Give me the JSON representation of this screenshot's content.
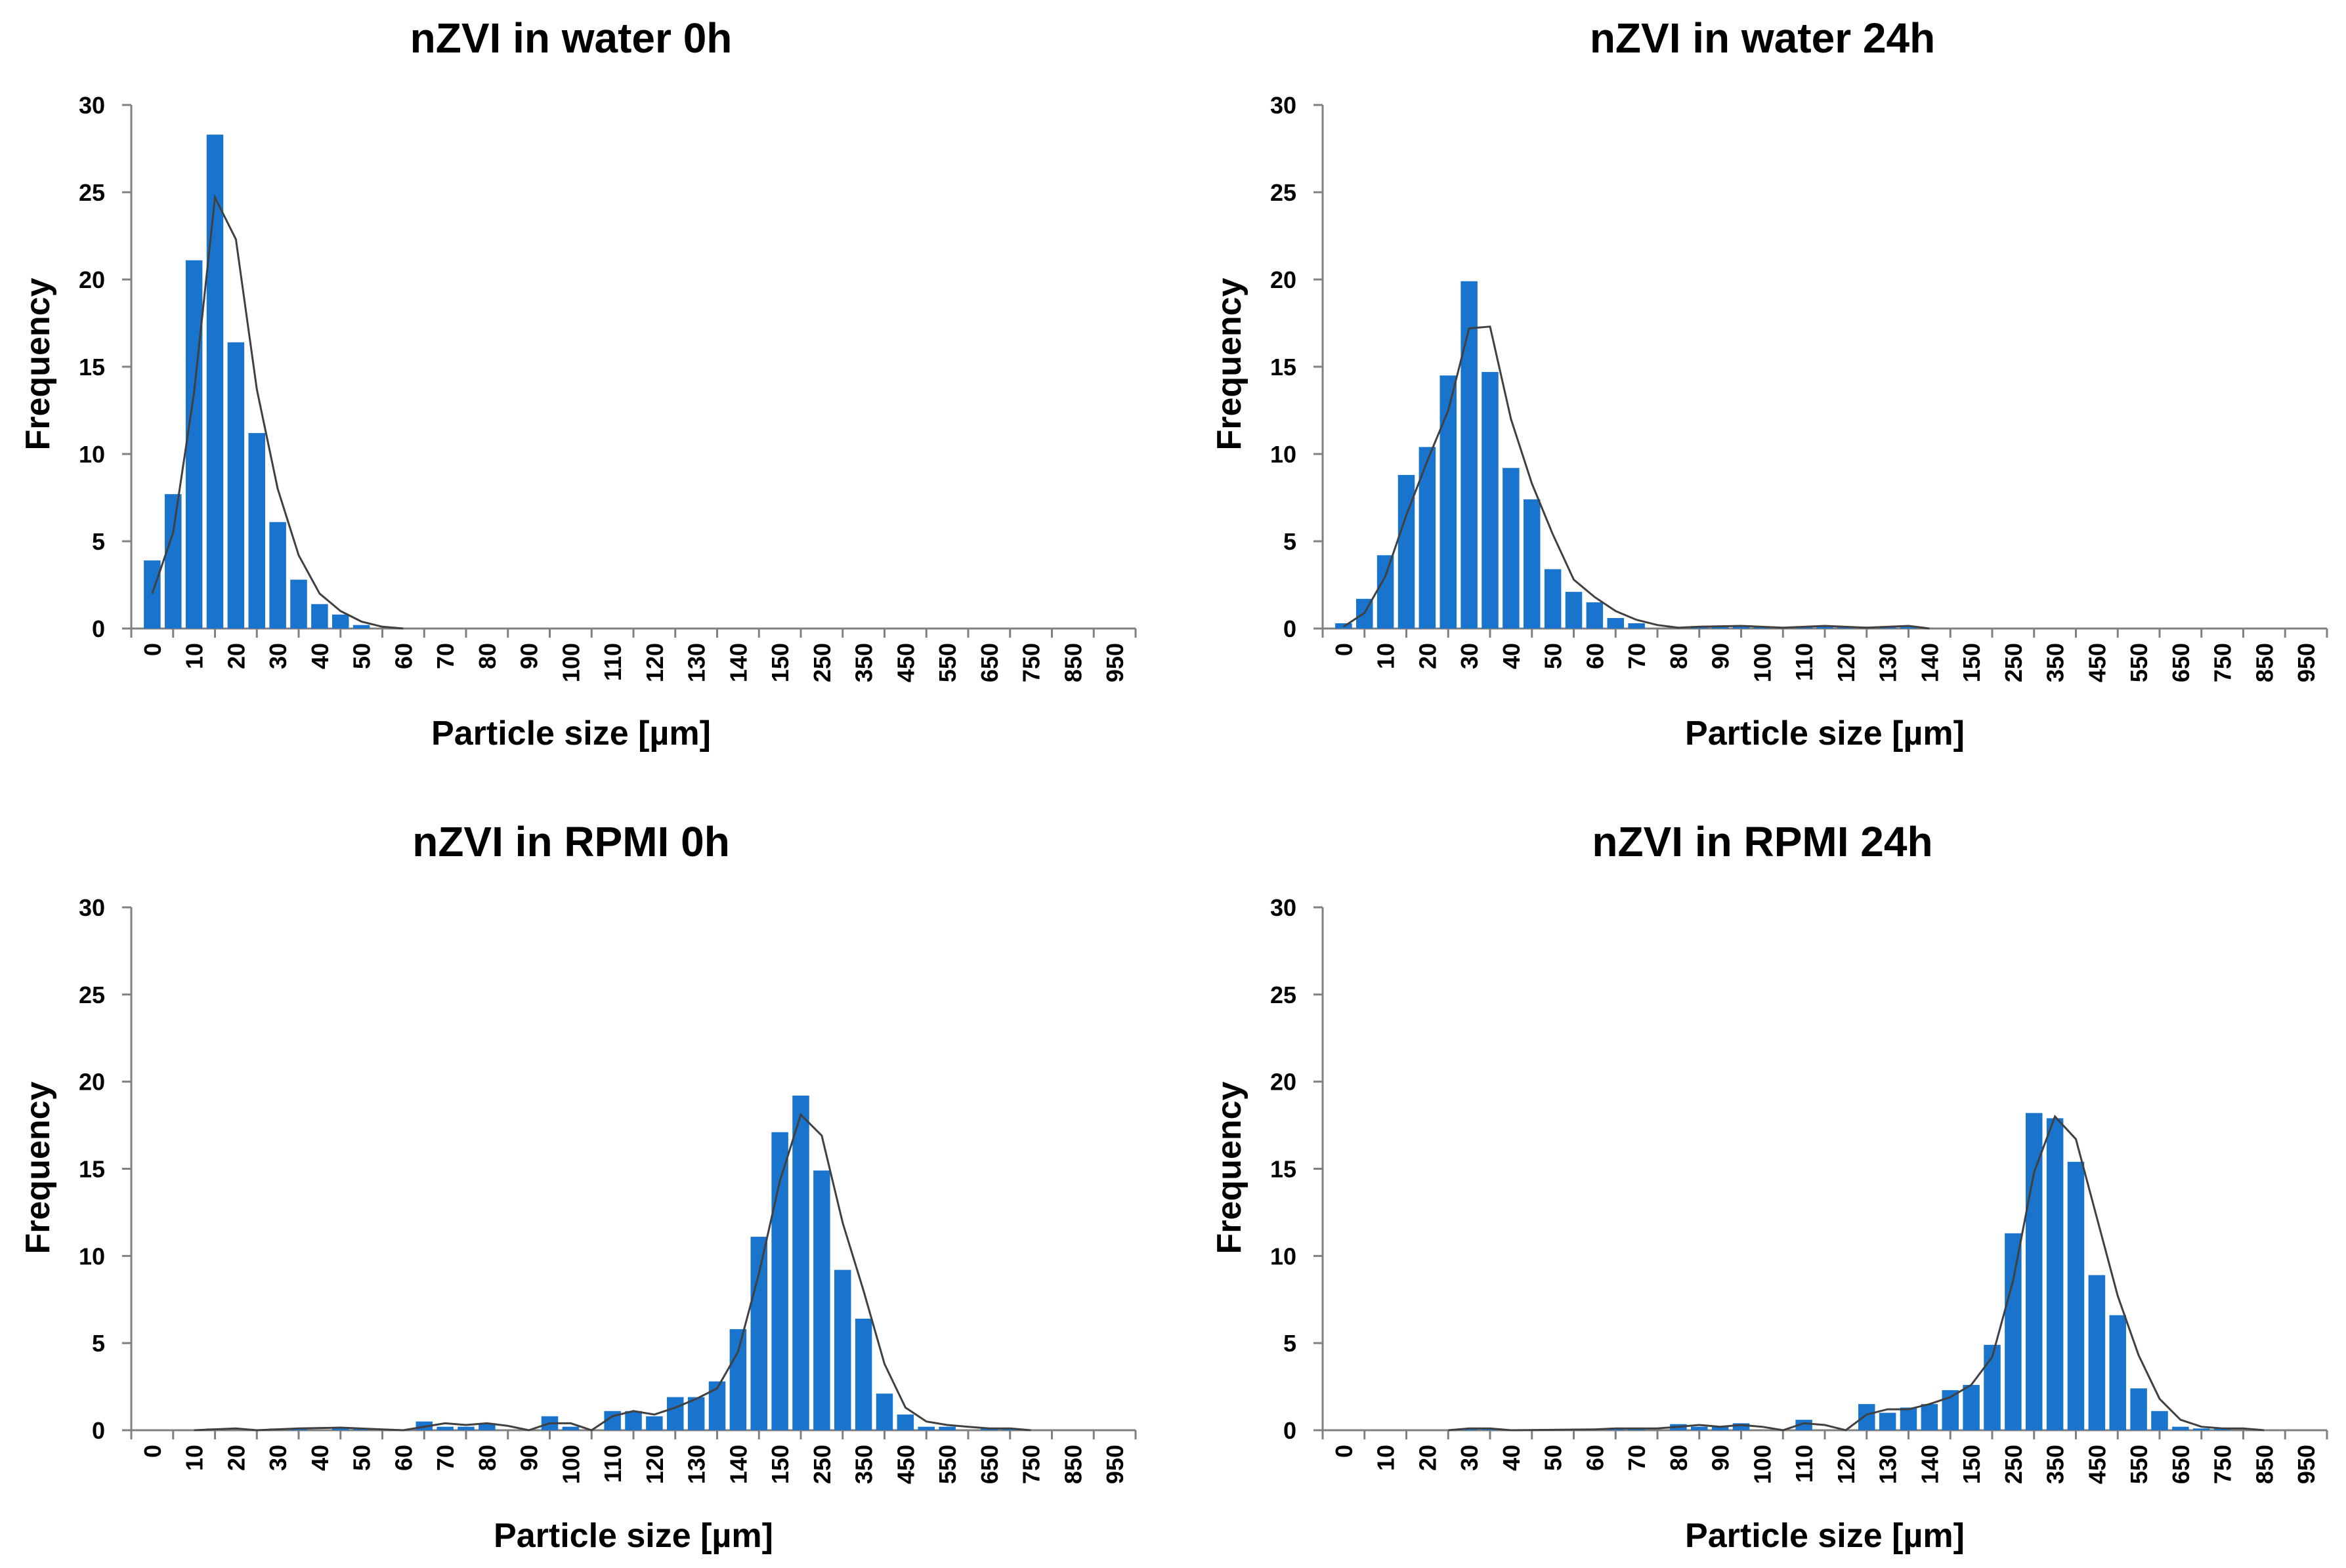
{
  "colors": {
    "bar": "#1874CD",
    "fit_line": "#404040",
    "axis": "#808080"
  },
  "chart_data": [
    {
      "type": "bar",
      "title": "nZVI in water 0h",
      "xlabel": "Particle size [µm]",
      "ylabel": "Frequency",
      "ylim": [
        0,
        30
      ],
      "yticks": [
        "0",
        "5",
        "10",
        "15",
        "20",
        "25",
        "30"
      ],
      "categories": [
        "0",
        "10",
        "20",
        "30",
        "40",
        "50",
        "60",
        "70",
        "80",
        "90",
        "100",
        "110",
        "120",
        "130",
        "140",
        "150",
        "250",
        "350",
        "450",
        "550",
        "650",
        "750",
        "850",
        "950"
      ],
      "bars": [
        {
          "x": 0.5,
          "value": 3.9
        },
        {
          "x": 1.0,
          "value": 7.7
        },
        {
          "x": 1.5,
          "value": 21.1
        },
        {
          "x": 2.0,
          "value": 28.3
        },
        {
          "x": 2.5,
          "value": 16.4
        },
        {
          "x": 3.0,
          "value": 11.2
        },
        {
          "x": 3.5,
          "value": 6.1
        },
        {
          "x": 4.0,
          "value": 2.8
        },
        {
          "x": 4.5,
          "value": 1.4
        },
        {
          "x": 5.0,
          "value": 0.8
        },
        {
          "x": 5.5,
          "value": 0.2
        }
      ],
      "fit": [
        [
          0.5,
          2.0
        ],
        [
          1.0,
          5.5
        ],
        [
          1.5,
          13.5
        ],
        [
          2.0,
          24.7
        ],
        [
          2.5,
          22.3
        ],
        [
          3.0,
          13.7
        ],
        [
          3.5,
          8.0
        ],
        [
          4.0,
          4.2
        ],
        [
          4.5,
          2.0
        ],
        [
          5.0,
          1.0
        ],
        [
          5.5,
          0.4
        ],
        [
          6.0,
          0.1
        ],
        [
          6.5,
          0.0
        ]
      ]
    },
    {
      "type": "bar",
      "title": "nZVI in water 24h",
      "xlabel": "Particle size [µm]",
      "ylabel": "Frequency",
      "ylim": [
        0,
        30
      ],
      "yticks": [
        "0",
        "5",
        "10",
        "15",
        "20",
        "25",
        "30"
      ],
      "categories": [
        "0",
        "10",
        "20",
        "30",
        "40",
        "50",
        "60",
        "70",
        "80",
        "90",
        "100",
        "110",
        "120",
        "130",
        "140",
        "150",
        "250",
        "350",
        "450",
        "550",
        "650",
        "750",
        "850",
        "950"
      ],
      "bars": [
        {
          "x": 0.5,
          "value": 0.3
        },
        {
          "x": 1.0,
          "value": 1.7
        },
        {
          "x": 1.5,
          "value": 4.2
        },
        {
          "x": 2.0,
          "value": 8.8
        },
        {
          "x": 2.5,
          "value": 10.4
        },
        {
          "x": 3.0,
          "value": 14.5
        },
        {
          "x": 3.5,
          "value": 19.9
        },
        {
          "x": 4.0,
          "value": 14.7
        },
        {
          "x": 4.5,
          "value": 9.2
        },
        {
          "x": 5.0,
          "value": 7.4
        },
        {
          "x": 5.5,
          "value": 3.4
        },
        {
          "x": 6.0,
          "value": 2.1
        },
        {
          "x": 6.5,
          "value": 1.5
        },
        {
          "x": 7.0,
          "value": 0.6
        },
        {
          "x": 7.5,
          "value": 0.3
        },
        {
          "x": 9.0,
          "value": 0.1
        },
        {
          "x": 9.5,
          "value": 0.15
        },
        {
          "x": 10.0,
          "value": 0.15
        },
        {
          "x": 10.5,
          "value": 0.1
        },
        {
          "x": 11.5,
          "value": 0.1
        },
        {
          "x": 12.0,
          "value": 0.15
        },
        {
          "x": 12.5,
          "value": 0.1
        },
        {
          "x": 13.0,
          "value": 0.1
        },
        {
          "x": 13.5,
          "value": 0.1
        },
        {
          "x": 14.0,
          "value": 0.15
        }
      ],
      "fit": [
        [
          0.5,
          0.1
        ],
        [
          1.0,
          0.9
        ],
        [
          1.5,
          3.0
        ],
        [
          2.0,
          6.5
        ],
        [
          2.5,
          9.6
        ],
        [
          3.0,
          12.5
        ],
        [
          3.5,
          17.2
        ],
        [
          4.0,
          17.3
        ],
        [
          4.5,
          12.0
        ],
        [
          5.0,
          8.3
        ],
        [
          5.5,
          5.4
        ],
        [
          6.0,
          2.8
        ],
        [
          6.5,
          1.8
        ],
        [
          7.0,
          1.0
        ],
        [
          7.5,
          0.5
        ],
        [
          8.0,
          0.2
        ],
        [
          8.5,
          0.05
        ],
        [
          9.0,
          0.1
        ],
        [
          10.0,
          0.15
        ],
        [
          11.0,
          0.05
        ],
        [
          12.0,
          0.15
        ],
        [
          13.0,
          0.05
        ],
        [
          14.0,
          0.15
        ],
        [
          14.5,
          0.0
        ]
      ]
    },
    {
      "type": "bar",
      "title": "nZVI in RPMI 0h",
      "xlabel": "Particle size [µm]",
      "ylabel": "Frequency",
      "ylim": [
        0,
        30
      ],
      "yticks": [
        "0",
        "5",
        "10",
        "15",
        "20",
        "25",
        "30"
      ],
      "categories": [
        "0",
        "10",
        "20",
        "30",
        "40",
        "50",
        "60",
        "70",
        "80",
        "90",
        "100",
        "110",
        "120",
        "130",
        "140",
        "150",
        "250",
        "350",
        "450",
        "550",
        "650",
        "750",
        "850",
        "950"
      ],
      "bars": [
        {
          "x": 2.0,
          "value": 0.1
        },
        {
          "x": 3.5,
          "value": 0.1
        },
        {
          "x": 4.0,
          "value": 0.1
        },
        {
          "x": 5.0,
          "value": 0.15
        },
        {
          "x": 5.5,
          "value": 0.1
        },
        {
          "x": 7.0,
          "value": 0.5
        },
        {
          "x": 7.5,
          "value": 0.2
        },
        {
          "x": 8.0,
          "value": 0.2
        },
        {
          "x": 8.5,
          "value": 0.4
        },
        {
          "x": 10.0,
          "value": 0.8
        },
        {
          "x": 10.5,
          "value": 0.2
        },
        {
          "x": 11.5,
          "value": 1.1
        },
        {
          "x": 12.0,
          "value": 1.1
        },
        {
          "x": 12.5,
          "value": 0.8
        },
        {
          "x": 13.0,
          "value": 1.9
        },
        {
          "x": 13.5,
          "value": 1.9
        },
        {
          "x": 14.0,
          "value": 2.8
        },
        {
          "x": 14.5,
          "value": 5.8
        },
        {
          "x": 15.0,
          "value": 11.1
        },
        {
          "x": 15.5,
          "value": 17.1
        },
        {
          "x": 16.0,
          "value": 19.2
        },
        {
          "x": 16.5,
          "value": 14.9
        },
        {
          "x": 17.0,
          "value": 9.2
        },
        {
          "x": 17.5,
          "value": 6.4
        },
        {
          "x": 18.0,
          "value": 2.1
        },
        {
          "x": 18.5,
          "value": 0.9
        },
        {
          "x": 19.0,
          "value": 0.2
        },
        {
          "x": 19.5,
          "value": 0.2
        },
        {
          "x": 20.5,
          "value": 0.1
        },
        {
          "x": 21.0,
          "value": 0.1
        }
      ],
      "fit": [
        [
          1.5,
          0.0
        ],
        [
          2.5,
          0.1
        ],
        [
          3.0,
          0.0
        ],
        [
          4.0,
          0.1
        ],
        [
          5.0,
          0.15
        ],
        [
          6.0,
          0.05
        ],
        [
          6.5,
          0.0
        ],
        [
          7.5,
          0.4
        ],
        [
          8.0,
          0.3
        ],
        [
          8.5,
          0.4
        ],
        [
          9.0,
          0.25
        ],
        [
          9.5,
          0.0
        ],
        [
          10.0,
          0.4
        ],
        [
          10.5,
          0.4
        ],
        [
          11.0,
          0.0
        ],
        [
          11.5,
          0.8
        ],
        [
          12.0,
          1.1
        ],
        [
          12.5,
          0.9
        ],
        [
          13.0,
          1.3
        ],
        [
          13.5,
          1.8
        ],
        [
          14.0,
          2.4
        ],
        [
          14.5,
          4.5
        ],
        [
          15.0,
          9.0
        ],
        [
          15.5,
          14.3
        ],
        [
          16.0,
          18.1
        ],
        [
          16.5,
          16.9
        ],
        [
          17.0,
          11.9
        ],
        [
          17.5,
          8.0
        ],
        [
          18.0,
          3.8
        ],
        [
          18.5,
          1.3
        ],
        [
          19.0,
          0.5
        ],
        [
          19.5,
          0.3
        ],
        [
          20.0,
          0.2
        ],
        [
          20.5,
          0.1
        ],
        [
          21.0,
          0.1
        ],
        [
          21.5,
          0.0
        ]
      ]
    },
    {
      "type": "bar",
      "title": "nZVI in RPMI 24h",
      "xlabel": "Particle size [µm]",
      "ylabel": "Frequency",
      "ylim": [
        0,
        30
      ],
      "yticks": [
        "0",
        "5",
        "10",
        "15",
        "20",
        "25",
        "30"
      ],
      "categories": [
        "0",
        "10",
        "20",
        "30",
        "40",
        "50",
        "60",
        "70",
        "80",
        "90",
        "100",
        "110",
        "120",
        "130",
        "140",
        "150",
        "250",
        "350",
        "450",
        "550",
        "650",
        "750",
        "850",
        "950"
      ],
      "bars": [
        {
          "x": 3.5,
          "value": 0.1
        },
        {
          "x": 4.0,
          "value": 0.1
        },
        {
          "x": 6.5,
          "value": 0.1
        },
        {
          "x": 7.0,
          "value": 0.1
        },
        {
          "x": 7.5,
          "value": 0.1
        },
        {
          "x": 8.5,
          "value": 0.35
        },
        {
          "x": 9.0,
          "value": 0.2
        },
        {
          "x": 9.5,
          "value": 0.2
        },
        {
          "x": 10.0,
          "value": 0.4
        },
        {
          "x": 11.5,
          "value": 0.6
        },
        {
          "x": 13.0,
          "value": 1.5
        },
        {
          "x": 13.5,
          "value": 1.0
        },
        {
          "x": 14.0,
          "value": 1.3
        },
        {
          "x": 14.5,
          "value": 1.5
        },
        {
          "x": 15.0,
          "value": 2.3
        },
        {
          "x": 15.5,
          "value": 2.6
        },
        {
          "x": 16.0,
          "value": 4.9
        },
        {
          "x": 16.5,
          "value": 11.3
        },
        {
          "x": 17.0,
          "value": 18.2
        },
        {
          "x": 17.5,
          "value": 17.9
        },
        {
          "x": 18.0,
          "value": 15.4
        },
        {
          "x": 18.5,
          "value": 8.9
        },
        {
          "x": 19.0,
          "value": 6.6
        },
        {
          "x": 19.5,
          "value": 2.4
        },
        {
          "x": 20.0,
          "value": 1.1
        },
        {
          "x": 20.5,
          "value": 0.2
        },
        {
          "x": 21.0,
          "value": 0.1
        },
        {
          "x": 21.5,
          "value": 0.1
        }
      ],
      "fit": [
        [
          3.0,
          0.0
        ],
        [
          3.5,
          0.1
        ],
        [
          4.0,
          0.1
        ],
        [
          4.5,
          0.0
        ],
        [
          6.5,
          0.05
        ],
        [
          7.0,
          0.1
        ],
        [
          8.0,
          0.1
        ],
        [
          8.5,
          0.2
        ],
        [
          9.0,
          0.3
        ],
        [
          9.5,
          0.2
        ],
        [
          10.0,
          0.3
        ],
        [
          10.5,
          0.2
        ],
        [
          11.0,
          0.0
        ],
        [
          11.5,
          0.4
        ],
        [
          12.0,
          0.3
        ],
        [
          12.5,
          0.0
        ],
        [
          13.0,
          0.9
        ],
        [
          13.5,
          1.2
        ],
        [
          14.0,
          1.2
        ],
        [
          14.5,
          1.5
        ],
        [
          15.0,
          1.9
        ],
        [
          15.5,
          2.6
        ],
        [
          16.0,
          4.2
        ],
        [
          16.5,
          8.6
        ],
        [
          17.0,
          14.8
        ],
        [
          17.5,
          18.0
        ],
        [
          18.0,
          16.7
        ],
        [
          18.5,
          12.2
        ],
        [
          19.0,
          7.7
        ],
        [
          19.5,
          4.3
        ],
        [
          20.0,
          1.8
        ],
        [
          20.5,
          0.6
        ],
        [
          21.0,
          0.2
        ],
        [
          21.5,
          0.1
        ],
        [
          22.0,
          0.1
        ],
        [
          22.5,
          0.0
        ]
      ]
    }
  ]
}
